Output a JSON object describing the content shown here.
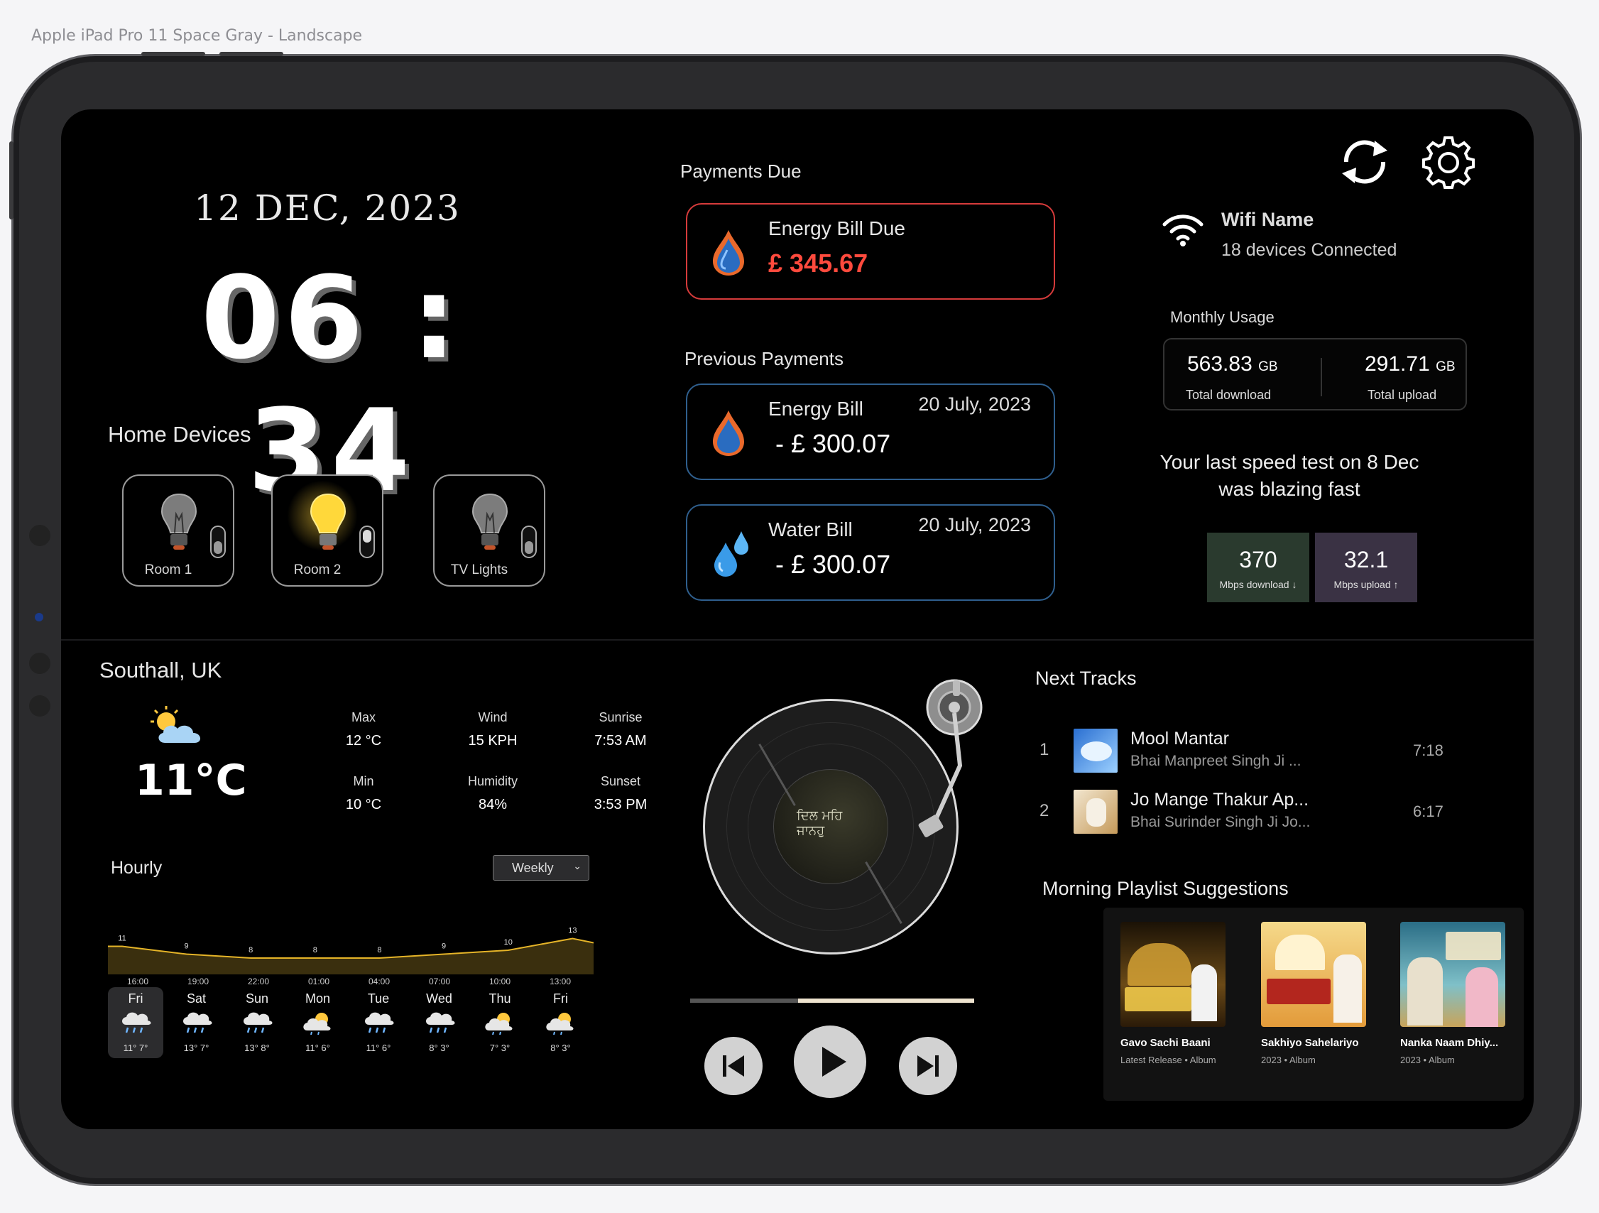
{
  "frame_label": "Apple iPad Pro 11 Space Gray - Landscape",
  "clock": {
    "date": "12 DEC, 2023",
    "time": "06 : 34"
  },
  "home_devices": {
    "title": "Home Devices",
    "devices": [
      {
        "label": "Room 1",
        "on": false
      },
      {
        "label": "Room 2",
        "on": true
      },
      {
        "label": "TV Lights",
        "on": false
      }
    ]
  },
  "payments": {
    "due_title": "Payments Due",
    "due": {
      "title": "Energy Bill Due",
      "amount": "£ 345.67"
    },
    "previous_title": "Previous Payments",
    "previous": [
      {
        "title": "Energy Bill",
        "date": "20 July, 2023",
        "amount": "- £ 300.07",
        "icon": "flame-drop-icon"
      },
      {
        "title": "Water Bill",
        "date": "20 July, 2023",
        "amount": "- £ 300.07",
        "icon": "water-drops-icon"
      }
    ],
    "colors": {
      "due_border": "#d63b3b",
      "due_amount": "#ff4a3d",
      "previous_border": "#2f5f8e"
    }
  },
  "network": {
    "wifi_name": "Wifi Name",
    "devices_connected": "18 devices Connected",
    "monthly_usage_title": "Monthly Usage",
    "download": {
      "value": "563.83",
      "unit": "GB",
      "label": "Total download"
    },
    "upload": {
      "value": "291.71",
      "unit": "GB",
      "label": "Total upload"
    },
    "speed_test_text": "Your last speed test on 8 Dec was blazing fast",
    "speed_download": {
      "value": "370",
      "label": "Mbps download ↓"
    },
    "speed_upload": {
      "value": "32.1",
      "label": "Mbps upload ↑"
    }
  },
  "weather": {
    "location": "Southall, UK",
    "current_temp": "11°C",
    "stats": [
      {
        "label": "Max",
        "value": "12 °C"
      },
      {
        "label": "Wind",
        "value": "15 KPH"
      },
      {
        "label": "Sunrise",
        "value": "7:53 AM"
      },
      {
        "label": "Min",
        "value": "10 °C"
      },
      {
        "label": "Humidity",
        "value": "84%"
      },
      {
        "label": "Sunset",
        "value": "3:53 PM"
      }
    ],
    "hourly_title": "Hourly",
    "range_select": "Weekly",
    "hourly_values": [
      "11",
      "9",
      "8",
      "8",
      "8",
      "9",
      "10",
      "13"
    ],
    "hourly_times": [
      "16:00",
      "19:00",
      "22:00",
      "01:00",
      "04:00",
      "07:00",
      "10:00",
      "13:00"
    ],
    "days": [
      {
        "day": "Fri",
        "temps": "11° 7°",
        "icon": "rain-cloud-icon"
      },
      {
        "day": "Sat",
        "temps": "13° 7°",
        "icon": "rain-cloud-icon"
      },
      {
        "day": "Sun",
        "temps": "13° 8°",
        "icon": "rain-cloud-icon"
      },
      {
        "day": "Mon",
        "temps": "11° 6°",
        "icon": "sun-cloud-icon"
      },
      {
        "day": "Tue",
        "temps": "11° 6°",
        "icon": "rain-cloud-icon"
      },
      {
        "day": "Wed",
        "temps": "8° 3°",
        "icon": "rain-cloud-icon"
      },
      {
        "day": "Thu",
        "temps": "7° 3°",
        "icon": "sun-cloud-icon"
      },
      {
        "day": "Fri",
        "temps": "8° 3°",
        "icon": "sun-cloud-icon"
      }
    ]
  },
  "player": {
    "progress": 0.38
  },
  "tracks": {
    "title": "Next Tracks",
    "items": [
      {
        "num": "1",
        "title": "Mool Mantar",
        "artist": "Bhai Manpreet Singh Ji ...",
        "duration": "7:18"
      },
      {
        "num": "2",
        "title": "Jo Mange Thakur Ap...",
        "artist": "Bhai Surinder Singh Ji Jo...",
        "duration": "6:17"
      }
    ]
  },
  "playlists": {
    "title": "Morning Playlist Suggestions",
    "items": [
      {
        "name": "Gavo Sachi Baani",
        "sub": "Latest Release • Album"
      },
      {
        "name": "Sakhiyo Sahelariyo",
        "sub": "2023 • Album"
      },
      {
        "name": "Nanka Naam Dhiy...",
        "sub": "2023 • Album"
      }
    ]
  }
}
